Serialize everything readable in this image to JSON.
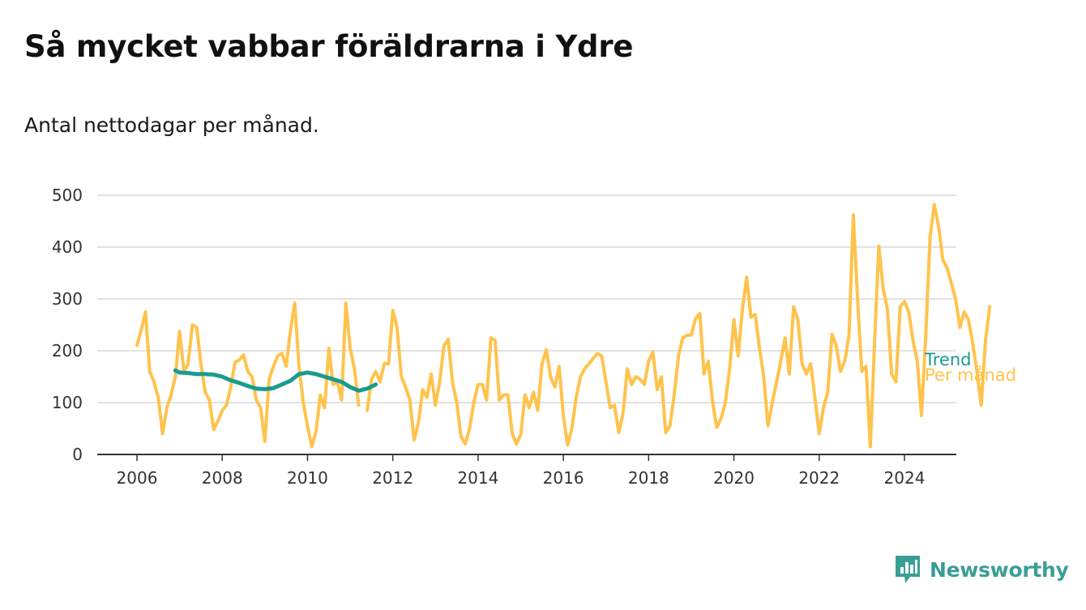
{
  "title": "Så mycket vabbar föräldrarna i Ydre",
  "subtitle": "Antal nettodagar per månad.",
  "brand": {
    "name": "Newsworthy",
    "icon": "newsworthy-logo-icon",
    "color": "#3a9e94"
  },
  "colors": {
    "monthly": "#ffc34d",
    "trend": "#1a9b8e",
    "grid": "#d9d9d9",
    "axis": "#333333"
  },
  "chart_data": {
    "type": "line",
    "title": "Så mycket vabbar föräldrarna i Ydre",
    "xlabel": "",
    "ylabel": "",
    "xlim": [
      2005.1,
      2026.1
    ],
    "ylim": [
      0,
      500
    ],
    "yticks": [
      0,
      100,
      200,
      300,
      400,
      500
    ],
    "xticks": [
      2006,
      2008,
      2010,
      2012,
      2014,
      2016,
      2018,
      2020,
      2022,
      2024
    ],
    "grid": true,
    "series": [
      {
        "name": "Per månad",
        "color": "#ffc34d",
        "points": [
          [
            2006.0,
            210
          ],
          [
            2006.1,
            240
          ],
          [
            2006.2,
            275
          ],
          [
            2006.3,
            160
          ],
          [
            2006.4,
            140
          ],
          [
            2006.5,
            110
          ],
          [
            2006.6,
            40
          ],
          [
            2006.7,
            90
          ],
          [
            2006.8,
            115
          ],
          [
            2006.9,
            150
          ],
          [
            2007.0,
            238
          ],
          [
            2007.1,
            160
          ],
          [
            2007.2,
            175
          ],
          [
            2007.3,
            250
          ],
          [
            2007.4,
            245
          ],
          [
            2007.5,
            175
          ],
          [
            2007.6,
            120
          ],
          [
            2007.7,
            105
          ],
          [
            2007.8,
            48
          ],
          [
            2007.9,
            65
          ],
          [
            2008.0,
            85
          ],
          [
            2008.1,
            95
          ],
          [
            2008.2,
            130
          ],
          [
            2008.3,
            178
          ],
          [
            2008.4,
            182
          ],
          [
            2008.5,
            192
          ],
          [
            2008.6,
            160
          ],
          [
            2008.7,
            150
          ],
          [
            2008.8,
            105
          ],
          [
            2008.9,
            90
          ],
          [
            2009.0,
            25
          ],
          [
            2009.1,
            145
          ],
          [
            2009.2,
            170
          ],
          [
            2009.3,
            190
          ],
          [
            2009.4,
            195
          ],
          [
            2009.5,
            170
          ],
          [
            2009.6,
            240
          ],
          [
            2009.7,
            292
          ],
          [
            2009.8,
            170
          ],
          [
            2009.9,
            100
          ],
          [
            2010.0,
            55
          ],
          [
            2010.1,
            15
          ],
          [
            2010.2,
            45
          ],
          [
            2010.3,
            115
          ],
          [
            2010.4,
            90
          ],
          [
            2010.5,
            205
          ],
          [
            2010.6,
            135
          ],
          [
            2010.7,
            140
          ],
          [
            2010.8,
            105
          ],
          [
            2010.9,
            292
          ],
          [
            2011.0,
            205
          ],
          [
            2011.1,
            165
          ],
          [
            2011.2,
            95
          ],
          [
            2011.3,
            null
          ],
          [
            2011.4,
            85
          ],
          [
            2011.5,
            145
          ],
          [
            2011.6,
            160
          ],
          [
            2011.7,
            140
          ],
          [
            2011.8,
            175
          ],
          [
            2011.9,
            175
          ],
          [
            2012.0,
            278
          ],
          [
            2012.1,
            245
          ],
          [
            2012.2,
            150
          ],
          [
            2012.3,
            130
          ],
          [
            2012.4,
            105
          ],
          [
            2012.5,
            28
          ],
          [
            2012.6,
            60
          ],
          [
            2012.7,
            125
          ],
          [
            2012.8,
            110
          ],
          [
            2012.9,
            155
          ],
          [
            2013.0,
            95
          ],
          [
            2013.1,
            140
          ],
          [
            2013.2,
            210
          ],
          [
            2013.3,
            222
          ],
          [
            2013.4,
            140
          ],
          [
            2013.5,
            100
          ],
          [
            2013.6,
            35
          ],
          [
            2013.7,
            20
          ],
          [
            2013.8,
            50
          ],
          [
            2013.9,
            100
          ],
          [
            2014.0,
            135
          ],
          [
            2014.1,
            135
          ],
          [
            2014.2,
            105
          ],
          [
            2014.3,
            225
          ],
          [
            2014.4,
            220
          ],
          [
            2014.5,
            105
          ],
          [
            2014.6,
            115
          ],
          [
            2014.7,
            115
          ],
          [
            2014.8,
            40
          ],
          [
            2014.9,
            20
          ],
          [
            2015.0,
            38
          ],
          [
            2015.1,
            115
          ],
          [
            2015.2,
            90
          ],
          [
            2015.3,
            120
          ],
          [
            2015.4,
            85
          ],
          [
            2015.5,
            175
          ],
          [
            2015.6,
            202
          ],
          [
            2015.7,
            150
          ],
          [
            2015.8,
            130
          ],
          [
            2015.9,
            170
          ],
          [
            2016.0,
            75
          ],
          [
            2016.1,
            18
          ],
          [
            2016.2,
            50
          ],
          [
            2016.3,
            110
          ],
          [
            2016.4,
            150
          ],
          [
            2016.5,
            165
          ],
          [
            2016.6,
            175
          ],
          [
            2016.7,
            185
          ],
          [
            2016.8,
            195
          ],
          [
            2016.9,
            190
          ],
          [
            2017.0,
            140
          ],
          [
            2017.1,
            90
          ],
          [
            2017.2,
            95
          ],
          [
            2017.3,
            42
          ],
          [
            2017.4,
            80
          ],
          [
            2017.5,
            165
          ],
          [
            2017.6,
            135
          ],
          [
            2017.7,
            150
          ],
          [
            2017.8,
            145
          ],
          [
            2017.9,
            135
          ],
          [
            2018.0,
            180
          ],
          [
            2018.1,
            198
          ],
          [
            2018.2,
            125
          ],
          [
            2018.3,
            150
          ],
          [
            2018.4,
            42
          ],
          [
            2018.5,
            55
          ],
          [
            2018.6,
            115
          ],
          [
            2018.7,
            190
          ],
          [
            2018.8,
            225
          ],
          [
            2018.9,
            230
          ],
          [
            2019.0,
            230
          ],
          [
            2019.1,
            262
          ],
          [
            2019.2,
            272
          ],
          [
            2019.3,
            155
          ],
          [
            2019.4,
            180
          ],
          [
            2019.5,
            100
          ],
          [
            2019.6,
            52
          ],
          [
            2019.7,
            70
          ],
          [
            2019.8,
            100
          ],
          [
            2019.9,
            165
          ],
          [
            2020.0,
            260
          ],
          [
            2020.1,
            190
          ],
          [
            2020.2,
            280
          ],
          [
            2020.3,
            342
          ],
          [
            2020.4,
            265
          ],
          [
            2020.5,
            270
          ],
          [
            2020.6,
            205
          ],
          [
            2020.7,
            150
          ],
          [
            2020.8,
            55
          ],
          [
            2020.9,
            100
          ],
          [
            2021.0,
            140
          ],
          [
            2021.1,
            180
          ],
          [
            2021.2,
            225
          ],
          [
            2021.3,
            155
          ],
          [
            2021.4,
            285
          ],
          [
            2021.5,
            260
          ],
          [
            2021.6,
            175
          ],
          [
            2021.7,
            155
          ],
          [
            2021.8,
            175
          ],
          [
            2021.9,
            110
          ],
          [
            2022.0,
            40
          ],
          [
            2022.1,
            90
          ],
          [
            2022.2,
            120
          ],
          [
            2022.3,
            232
          ],
          [
            2022.4,
            210
          ],
          [
            2022.5,
            160
          ],
          [
            2022.6,
            180
          ],
          [
            2022.7,
            230
          ],
          [
            2022.8,
            462
          ],
          [
            2022.9,
            300
          ],
          [
            2023.0,
            160
          ],
          [
            2023.1,
            170
          ],
          [
            2023.2,
            15
          ],
          [
            2023.3,
            220
          ],
          [
            2023.4,
            402
          ],
          [
            2023.5,
            320
          ],
          [
            2023.6,
            280
          ],
          [
            2023.7,
            155
          ],
          [
            2023.8,
            140
          ],
          [
            2023.9,
            285
          ],
          [
            2024.0,
            295
          ],
          [
            2024.1,
            275
          ],
          [
            2024.2,
            220
          ],
          [
            2024.3,
            180
          ],
          [
            2024.4,
            75
          ],
          [
            2024.5,
            230
          ],
          [
            2024.6,
            420
          ],
          [
            2024.7,
            482
          ],
          [
            2024.8,
            440
          ],
          [
            2024.9,
            375
          ],
          [
            2025.0,
            360
          ],
          [
            2025.1,
            330
          ],
          [
            2025.2,
            300
          ],
          [
            2025.3,
            245
          ],
          [
            2025.4,
            275
          ],
          [
            2025.5,
            260
          ],
          [
            2025.6,
            215
          ],
          [
            2025.7,
            160
          ],
          [
            2025.8,
            95
          ],
          [
            2025.9,
            220
          ],
          [
            2026.0,
            285
          ]
        ]
      },
      {
        "name": "Trend",
        "color": "#1a9b8e",
        "points": [
          [
            2006.9,
            162
          ],
          [
            2007.0,
            158
          ],
          [
            2007.2,
            157
          ],
          [
            2007.4,
            155
          ],
          [
            2007.6,
            155
          ],
          [
            2007.8,
            154
          ],
          [
            2008.0,
            150
          ],
          [
            2008.2,
            143
          ],
          [
            2008.4,
            138
          ],
          [
            2008.6,
            132
          ],
          [
            2008.8,
            127
          ],
          [
            2009.0,
            126
          ],
          [
            2009.2,
            128
          ],
          [
            2009.4,
            135
          ],
          [
            2009.6,
            142
          ],
          [
            2009.8,
            155
          ],
          [
            2010.0,
            158
          ],
          [
            2010.2,
            155
          ],
          [
            2010.4,
            150
          ],
          [
            2010.6,
            145
          ],
          [
            2010.8,
            140
          ],
          [
            2011.0,
            130
          ],
          [
            2011.2,
            123
          ],
          [
            2011.4,
            127
          ],
          [
            2011.6,
            135
          ],
          [
            2011.7,
            null
          ]
        ]
      }
    ]
  }
}
